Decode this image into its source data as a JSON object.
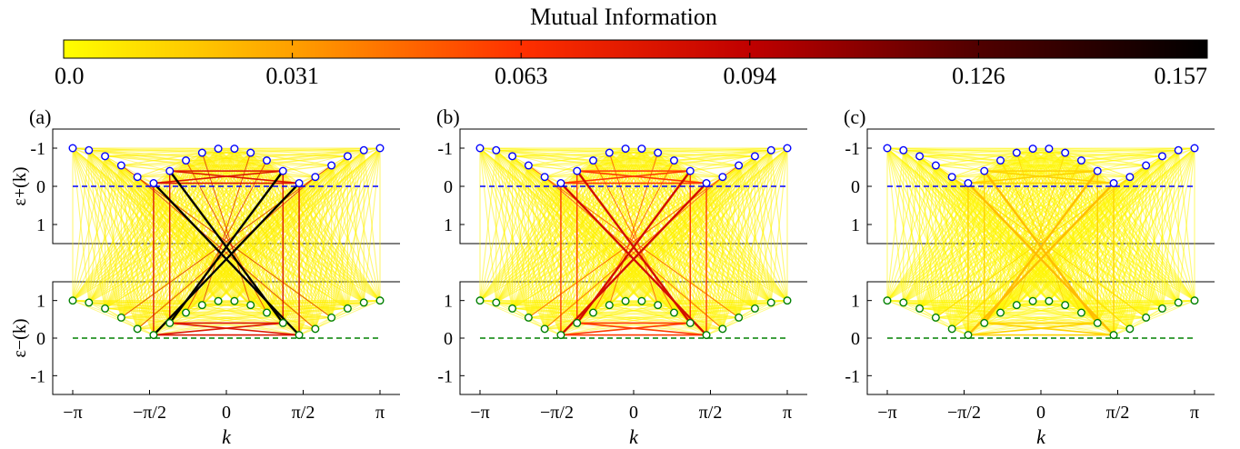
{
  "colorbar": {
    "title": "Mutual Information",
    "ticks": [
      "0.0",
      "0.031",
      "0.063",
      "0.094",
      "0.126",
      "0.157"
    ],
    "range": [
      0.0,
      0.157
    ],
    "colors": [
      "#ffff00",
      "#ffa000",
      "#ff3000",
      "#c00000",
      "#500000",
      "#000000"
    ]
  },
  "axis_text": {
    "upper_ylabel": "ε+(k)",
    "lower_ylabel": "ε−(k)",
    "upper_yticks": [
      "-1",
      "0",
      "1"
    ],
    "lower_yticks": [
      "1",
      "0",
      "-1"
    ],
    "xticks": [
      "−π",
      "−π/2",
      "0",
      "π/2",
      "π"
    ],
    "xlabel": "k"
  },
  "chart_data": [
    {
      "type": "scatter",
      "panel": "(a)",
      "title": "",
      "xlabel": "k",
      "ylabel": "ε±(k)",
      "xlim": [
        -3.1416,
        3.1416
      ],
      "upper_ylim": [
        1.5,
        -1.5
      ],
      "lower_ylim": [
        -1.5,
        1.5
      ],
      "series": [
        {
          "marker_color": "#0000ff",
          "dispersion": "ε+(k) = -|cos k|",
          "points": 20
        },
        {
          "marker_color": "#008000",
          "dispersion": "ε−(k) = |cos k|",
          "points": 20
        }
      ],
      "reference_lines": [
        {
          "y": 0,
          "color": "#0000ff"
        },
        {
          "y": 0,
          "color": "#008000"
        }
      ],
      "strong_links_MI": 0.157,
      "medium_links_MI": 0.08,
      "diffuse_MI": 0.005
    },
    {
      "type": "scatter",
      "panel": "(b)",
      "title": "",
      "xlabel": "k",
      "ylabel": "",
      "xlim": [
        -3.1416,
        3.1416
      ],
      "strong_links_MI": 0.085,
      "medium_links_MI": 0.06,
      "diffuse_MI": 0.004
    },
    {
      "type": "scatter",
      "panel": "(c)",
      "title": "",
      "xlabel": "k",
      "ylabel": "",
      "xlim": [
        -3.1416,
        3.1416
      ],
      "strong_links_MI": 0.022,
      "medium_links_MI": 0.015,
      "diffuse_MI": 0.003
    }
  ]
}
